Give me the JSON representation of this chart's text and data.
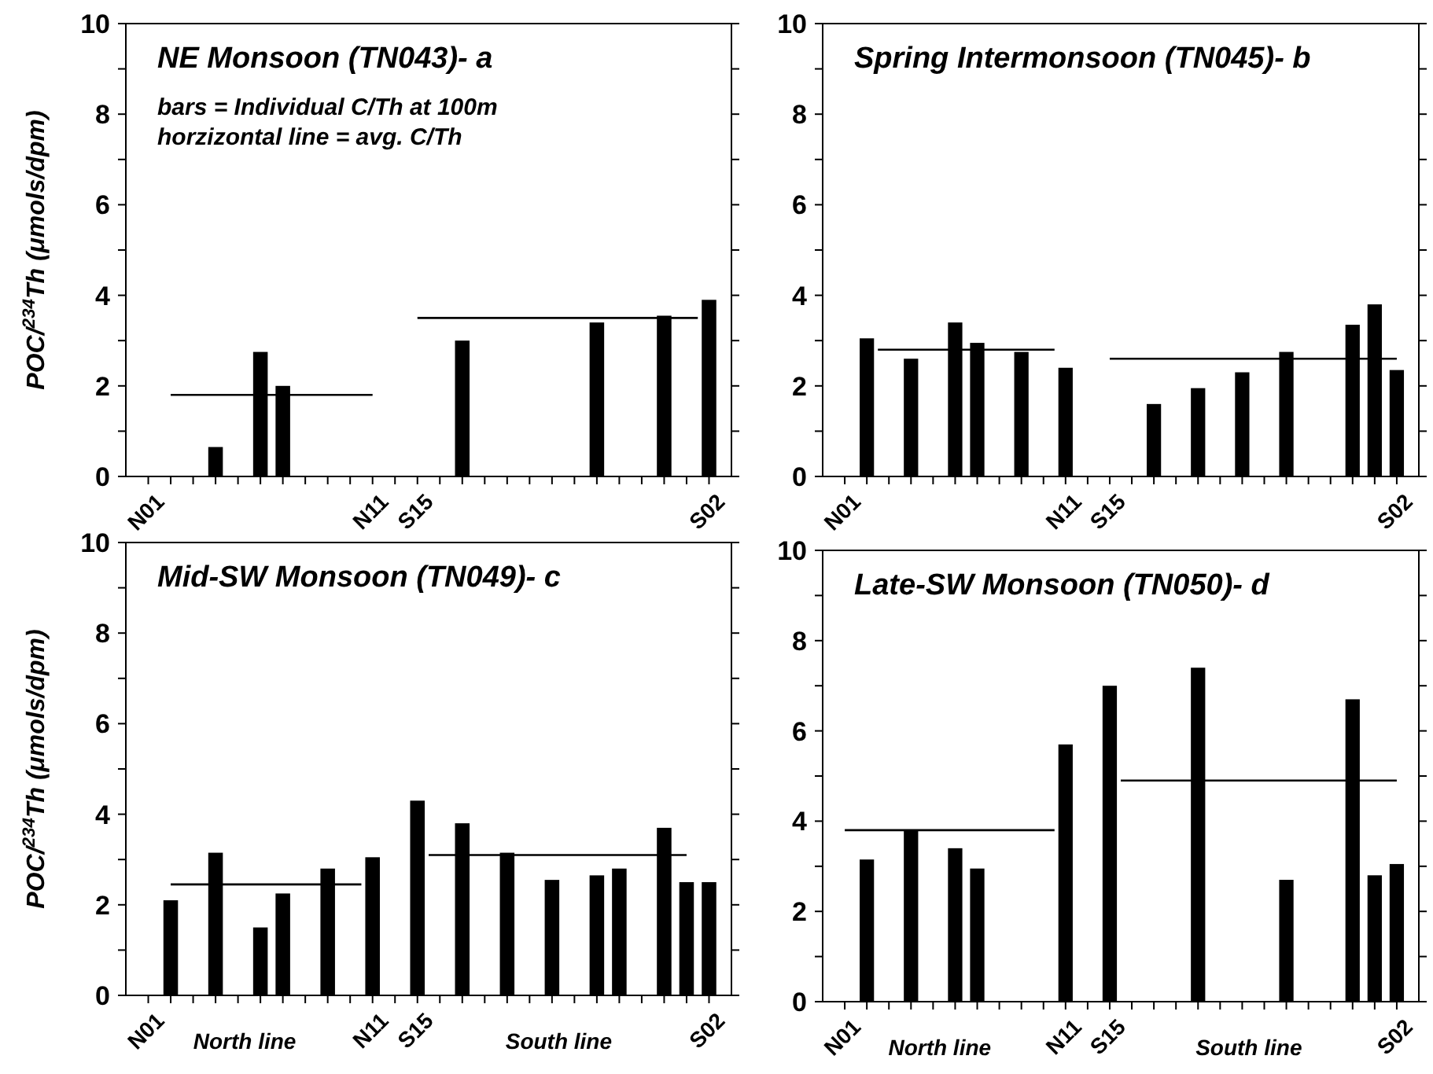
{
  "chart_data": [
    {
      "type": "bar",
      "title": "NE Monsoon (TN043)- a",
      "ylabel": "POC/$^{234}$Th  (μmols/dpm)",
      "annotations": [
        "bars = Individual C/Th at 100m",
        "horzizontal line = avg. C/Th"
      ],
      "categories": [
        "N01",
        null,
        null,
        null,
        null,
        null,
        null,
        null,
        null,
        null,
        null,
        null,
        null,
        null,
        null,
        null,
        null,
        null,
        null,
        null,
        "N11",
        null,
        null,
        null,
        "S15",
        null,
        null,
        null,
        null,
        null,
        null,
        null,
        null,
        null,
        null,
        null,
        null,
        null,
        null,
        null,
        null,
        null,
        null,
        null,
        null,
        null,
        null,
        null,
        null,
        null,
        "S02"
      ],
      "ylim": [
        0,
        10
      ],
      "yticks": [
        0,
        {
          "value": 1,
          "label": null
        },
        2,
        {
          "value": 3,
          "label": null
        },
        4,
        {
          "value": 5,
          "label": null
        },
        6,
        {
          "value": 7,
          "label": null
        },
        8,
        {
          "value": 9,
          "label": null
        },
        10
      ],
      "series": [
        {
          "color": "#000000",
          "values": [
            null,
            null,
            null,
            null,
            null,
            null,
            0.65,
            null,
            null,
            null,
            2.75,
            null,
            2.0,
            null,
            null,
            null,
            null,
            null,
            null,
            null,
            null,
            null,
            null,
            null,
            null,
            null,
            null,
            null,
            3.0,
            null,
            null,
            null,
            null,
            null,
            null,
            null,
            null,
            null,
            null,
            null,
            3.4,
            null,
            null,
            null,
            null,
            null,
            3.55,
            null,
            null,
            null,
            3.9
          ]
        },
        {
          "type": "line",
          "color": "#000000",
          "values": [
            null,
            null,
            1.8,
            1.8,
            1.8,
            1.8,
            1.8,
            1.8,
            1.8,
            1.8,
            1.8,
            1.8,
            1.8,
            1.8,
            1.8,
            1.8,
            1.8,
            1.8,
            1.8,
            1.8,
            1.8,
            null,
            null,
            null,
            null,
            null,
            null,
            null,
            null,
            null,
            null,
            null,
            null,
            null,
            null,
            null,
            null,
            null,
            null,
            null,
            null,
            null,
            null,
            null,
            null,
            null,
            null,
            null,
            null,
            null,
            null
          ]
        },
        {
          "type": "line",
          "color": "#000000",
          "values": [
            null,
            null,
            null,
            null,
            null,
            null,
            null,
            null,
            null,
            null,
            null,
            null,
            null,
            null,
            null,
            null,
            null,
            null,
            null,
            null,
            null,
            null,
            null,
            null,
            3.5,
            3.5,
            3.5,
            3.5,
            3.5,
            3.5,
            3.5,
            3.5,
            3.5,
            3.5,
            3.5,
            3.5,
            3.5,
            3.5,
            3.5,
            3.5,
            3.5,
            3.5,
            3.5,
            3.5,
            3.5,
            3.5,
            3.5,
            3.5,
            3.5,
            3.5,
            null
          ]
        }
      ]
    },
    {
      "type": "bar",
      "title": "Spring Intermonsoon (TN045)- b",
      "categories": [
        "N01",
        null,
        null,
        null,
        null,
        null,
        null,
        null,
        null,
        null,
        null,
        null,
        null,
        null,
        null,
        null,
        null,
        null,
        null,
        null,
        "N11",
        null,
        null,
        null,
        "S15",
        null,
        null,
        null,
        null,
        null,
        null,
        null,
        null,
        null,
        null,
        null,
        null,
        null,
        null,
        null,
        null,
        null,
        null,
        null,
        null,
        null,
        null,
        null,
        null,
        null,
        "S02"
      ],
      "ylim": [
        0,
        10
      ],
      "yticks": [
        0,
        {
          "value": 1,
          "label": null
        },
        2,
        {
          "value": 3,
          "label": null
        },
        4,
        {
          "value": 5,
          "label": null
        },
        6,
        {
          "value": 7,
          "label": null
        },
        8,
        {
          "value": 9,
          "label": null
        },
        10
      ],
      "series": [
        {
          "color": "#000000",
          "values": [
            null,
            null,
            3.05,
            null,
            null,
            null,
            2.6,
            null,
            null,
            null,
            3.4,
            null,
            2.95,
            null,
            null,
            null,
            2.75,
            null,
            null,
            null,
            2.4,
            null,
            null,
            null,
            null,
            null,
            null,
            null,
            1.6,
            null,
            null,
            null,
            1.95,
            null,
            null,
            null,
            2.3,
            null,
            null,
            null,
            2.75,
            null,
            null,
            null,
            null,
            null,
            3.35,
            null,
            3.8,
            null,
            2.35
          ]
        },
        {
          "type": "line",
          "color": "#000000",
          "values": [
            null,
            null,
            null,
            2.8,
            2.8,
            2.8,
            2.8,
            2.8,
            2.8,
            2.8,
            2.8,
            2.8,
            2.8,
            2.8,
            2.8,
            2.8,
            2.8,
            2.8,
            2.8,
            2.8,
            null,
            null,
            null,
            null,
            null,
            null,
            null,
            null,
            null,
            null,
            null,
            null,
            null,
            null,
            null,
            null,
            null,
            null,
            null,
            null,
            null,
            null,
            null,
            null,
            null,
            null,
            null,
            null,
            null,
            null,
            null
          ]
        },
        {
          "type": "line",
          "color": "#000000",
          "values": [
            null,
            null,
            null,
            null,
            null,
            null,
            null,
            null,
            null,
            null,
            null,
            null,
            null,
            null,
            null,
            null,
            null,
            null,
            null,
            null,
            null,
            null,
            null,
            null,
            2.6,
            2.6,
            2.6,
            2.6,
            2.6,
            2.6,
            2.6,
            2.6,
            2.6,
            2.6,
            2.6,
            2.6,
            2.6,
            2.6,
            2.6,
            2.6,
            2.6,
            2.6,
            2.6,
            2.6,
            2.6,
            2.6,
            2.6,
            2.6,
            2.6,
            2.6,
            2.6
          ]
        }
      ]
    },
    {
      "type": "bar",
      "title": "Mid-SW Monsoon (TN049)- c",
      "ylabel": "POC/$^{234}$Th (μmols/dpm)",
      "annotations": [
        "North line",
        "South line"
      ],
      "categories": [
        "N01",
        null,
        null,
        null,
        null,
        null,
        null,
        null,
        null,
        null,
        null,
        null,
        null,
        null,
        null,
        null,
        null,
        null,
        null,
        null,
        "N11",
        null,
        null,
        null,
        "S15",
        null,
        null,
        null,
        null,
        null,
        null,
        null,
        null,
        null,
        null,
        null,
        null,
        null,
        null,
        null,
        null,
        null,
        null,
        null,
        null,
        null,
        null,
        null,
        null,
        null,
        "S02"
      ],
      "ylim": [
        0,
        10
      ],
      "yticks": [
        0,
        {
          "value": 1,
          "label": null
        },
        2,
        {
          "value": 3,
          "label": null
        },
        4,
        {
          "value": 5,
          "label": null
        },
        6,
        {
          "value": 7,
          "label": null
        },
        8,
        {
          "value": 9,
          "label": null
        },
        10
      ],
      "series": [
        {
          "color": "#000000",
          "values": [
            null,
            null,
            2.1,
            null,
            null,
            null,
            3.15,
            null,
            null,
            null,
            1.5,
            null,
            2.25,
            null,
            null,
            null,
            2.8,
            null,
            null,
            null,
            3.05,
            null,
            null,
            null,
            4.3,
            null,
            null,
            null,
            3.8,
            null,
            null,
            null,
            3.15,
            null,
            null,
            null,
            2.55,
            null,
            null,
            null,
            2.65,
            null,
            2.8,
            null,
            null,
            null,
            3.7,
            null,
            2.5,
            null,
            2.5
          ]
        },
        {
          "type": "line",
          "color": "#000000",
          "values": [
            null,
            null,
            2.45,
            2.45,
            2.45,
            2.45,
            2.45,
            2.45,
            2.45,
            2.45,
            2.45,
            2.45,
            2.45,
            2.45,
            2.45,
            2.45,
            2.45,
            2.45,
            2.45,
            2.45,
            null,
            null,
            null,
            null,
            null,
            null,
            null,
            null,
            null,
            null,
            null,
            null,
            null,
            null,
            null,
            null,
            null,
            null,
            null,
            null,
            null,
            null,
            null,
            null,
            null,
            null,
            null,
            null,
            null,
            null,
            null
          ]
        },
        {
          "type": "line",
          "color": "#000000",
          "values": [
            null,
            null,
            null,
            null,
            null,
            null,
            null,
            null,
            null,
            null,
            null,
            null,
            null,
            null,
            null,
            null,
            null,
            null,
            null,
            null,
            null,
            null,
            null,
            null,
            null,
            3.1,
            3.1,
            3.1,
            3.1,
            3.1,
            3.1,
            3.1,
            3.1,
            3.1,
            3.1,
            3.1,
            3.1,
            3.1,
            3.1,
            3.1,
            3.1,
            3.1,
            3.1,
            3.1,
            3.1,
            3.1,
            3.1,
            3.1,
            3.1,
            null,
            null
          ]
        }
      ]
    },
    {
      "type": "bar",
      "title": "Late-SW Monsoon (TN050)- d",
      "annotations": [
        "North line",
        "South line"
      ],
      "categories": [
        "N01",
        null,
        null,
        null,
        null,
        null,
        null,
        null,
        null,
        null,
        null,
        null,
        null,
        null,
        null,
        null,
        null,
        null,
        null,
        null,
        "N11",
        null,
        null,
        null,
        "S15",
        null,
        null,
        null,
        null,
        null,
        null,
        null,
        null,
        null,
        null,
        null,
        null,
        null,
        null,
        null,
        null,
        null,
        null,
        null,
        null,
        null,
        null,
        null,
        null,
        null,
        "S02"
      ],
      "ylim": [
        0,
        10
      ],
      "yticks": [
        0,
        {
          "value": 1,
          "label": null
        },
        2,
        {
          "value": 3,
          "label": null
        },
        4,
        {
          "value": 5,
          "label": null
        },
        6,
        {
          "value": 7,
          "label": null
        },
        8,
        {
          "value": 9,
          "label": null
        },
        10
      ],
      "series": [
        {
          "color": "#000000",
          "values": [
            null,
            null,
            3.15,
            null,
            null,
            null,
            3.8,
            null,
            null,
            null,
            3.4,
            null,
            2.95,
            null,
            null,
            null,
            null,
            null,
            null,
            null,
            5.7,
            null,
            null,
            null,
            7.0,
            null,
            null,
            null,
            null,
            null,
            null,
            null,
            7.4,
            null,
            null,
            null,
            null,
            null,
            null,
            null,
            2.7,
            null,
            null,
            null,
            null,
            null,
            6.7,
            null,
            2.8,
            null,
            3.05
          ]
        },
        {
          "type": "line",
          "color": "#000000",
          "values": [
            3.8,
            3.8,
            3.8,
            3.8,
            3.8,
            3.8,
            3.8,
            3.8,
            3.8,
            3.8,
            3.8,
            3.8,
            3.8,
            3.8,
            3.8,
            3.8,
            3.8,
            3.8,
            3.8,
            3.8,
            null,
            null,
            null,
            null,
            null,
            null,
            null,
            null,
            null,
            null,
            null,
            null,
            null,
            null,
            null,
            null,
            null,
            null,
            null,
            null,
            null,
            null,
            null,
            null,
            null,
            null,
            null,
            null,
            null,
            null,
            null
          ]
        },
        {
          "type": "line",
          "color": "#000000",
          "values": [
            null,
            null,
            null,
            null,
            null,
            null,
            null,
            null,
            null,
            null,
            null,
            null,
            null,
            null,
            null,
            null,
            null,
            null,
            null,
            null,
            null,
            null,
            null,
            null,
            null,
            4.9,
            4.9,
            4.9,
            4.9,
            4.9,
            4.9,
            4.9,
            4.9,
            4.9,
            4.9,
            4.9,
            4.9,
            4.9,
            4.9,
            4.9,
            4.9,
            4.9,
            4.9,
            4.9,
            4.9,
            4.9,
            4.9,
            4.9,
            4.9,
            4.9,
            4.9
          ]
        }
      ]
    }
  ]
}
